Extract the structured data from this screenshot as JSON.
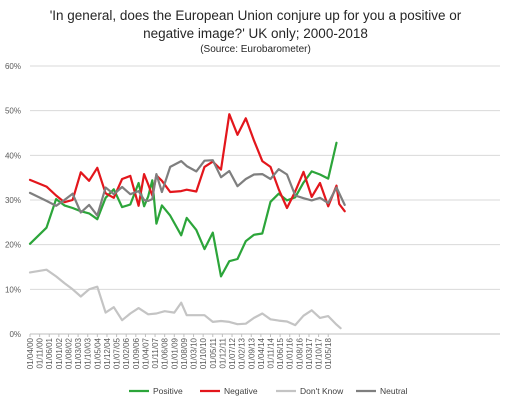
{
  "chart_data": {
    "type": "line",
    "title_line1": "'In general, does the European Union conjure up for you a positive or",
    "title_line2": "negative image?' UK only; 2000-2018",
    "subtitle": "(Source: Eurobarometer)",
    "ylim": [
      0,
      60
    ],
    "y_ticks": [
      "0%",
      "10%",
      "20%",
      "30%",
      "40%",
      "50%",
      "60%"
    ],
    "grid": true,
    "legend_position": "bottom",
    "x": [
      "01/04/00",
      "01/11/00",
      "01/06/01",
      "01/01/02",
      "01/08/02",
      "01/03/03",
      "01/10/03",
      "01/05/04",
      "01/12/04",
      "01/07/05",
      "01/02/06",
      "01/09/06",
      "01/04/07",
      "01/11/07",
      "01/06/08",
      "01/01/09",
      "01/08/09",
      "01/03/10",
      "01/10/10",
      "01/05/11",
      "01/12/11",
      "01/07/12",
      "01/02/13",
      "01/09/13",
      "01/04/14",
      "01/11/14",
      "01/06/15",
      "01/01/16",
      "01/08/16",
      "01/03/17",
      "01/10/17",
      "01/05/18"
    ],
    "series": [
      {
        "name": "Positive",
        "color": "#2ca53a",
        "points": [
          [
            "2000-04",
            20.2
          ],
          [
            "2001-04",
            23.8
          ],
          [
            "2001-11",
            30.2
          ],
          [
            "2002-05",
            28.8
          ],
          [
            "2002-11",
            28.2
          ],
          [
            "2003-05",
            27.5
          ],
          [
            "2003-11",
            27.0
          ],
          [
            "2004-05",
            25.7
          ],
          [
            "2004-11",
            30.5
          ],
          [
            "2005-05",
            32.4
          ],
          [
            "2005-11",
            28.4
          ],
          [
            "2006-05",
            29.0
          ],
          [
            "2006-11",
            33.8
          ],
          [
            "2007-03",
            28.6
          ],
          [
            "2007-06",
            30.8
          ],
          [
            "2007-09",
            34.4
          ],
          [
            "2007-12",
            24.7
          ],
          [
            "2008-04",
            28.8
          ],
          [
            "2008-10",
            26.5
          ],
          [
            "2009-06",
            22.1
          ],
          [
            "2009-10",
            26.0
          ],
          [
            "2010-05",
            23.3
          ],
          [
            "2010-11",
            19.0
          ],
          [
            "2011-05",
            22.7
          ],
          [
            "2011-11",
            12.9
          ],
          [
            "2012-05",
            16.3
          ],
          [
            "2012-11",
            16.8
          ],
          [
            "2013-05",
            20.8
          ],
          [
            "2013-11",
            22.2
          ],
          [
            "2014-05",
            22.5
          ],
          [
            "2014-11",
            29.6
          ],
          [
            "2015-05",
            31.4
          ],
          [
            "2015-11",
            29.9
          ],
          [
            "2016-05",
            30.6
          ],
          [
            "2016-11",
            33.9
          ],
          [
            "2017-05",
            36.4
          ],
          [
            "2017-11",
            35.7
          ],
          [
            "2018-05",
            34.8
          ],
          [
            "2018-11",
            42.8
          ]
        ]
      },
      {
        "name": "Negative",
        "color": "#e3161c",
        "points": [
          [
            "2000-04",
            34.5
          ],
          [
            "2001-04",
            33.0
          ],
          [
            "2001-11",
            31.0
          ],
          [
            "2002-05",
            29.5
          ],
          [
            "2002-11",
            30.0
          ],
          [
            "2003-05",
            36.2
          ],
          [
            "2003-11",
            34.3
          ],
          [
            "2004-05",
            37.2
          ],
          [
            "2004-11",
            31.5
          ],
          [
            "2005-05",
            30.5
          ],
          [
            "2005-11",
            34.7
          ],
          [
            "2006-05",
            35.4
          ],
          [
            "2006-11",
            28.7
          ],
          [
            "2007-03",
            35.8
          ],
          [
            "2007-06",
            33.5
          ],
          [
            "2007-09",
            31.0
          ],
          [
            "2007-12",
            35.5
          ],
          [
            "2008-04",
            34.3
          ],
          [
            "2008-10",
            31.8
          ],
          [
            "2009-06",
            32.0
          ],
          [
            "2009-10",
            32.3
          ],
          [
            "2010-05",
            31.9
          ],
          [
            "2010-11",
            37.4
          ],
          [
            "2011-05",
            38.6
          ],
          [
            "2011-11",
            36.8
          ],
          [
            "2012-05",
            49.2
          ],
          [
            "2012-11",
            44.6
          ],
          [
            "2013-05",
            48.3
          ],
          [
            "2013-11",
            43.3
          ],
          [
            "2014-05",
            38.7
          ],
          [
            "2014-11",
            37.4
          ],
          [
            "2015-05",
            32.4
          ],
          [
            "2015-11",
            28.2
          ],
          [
            "2016-05",
            31.9
          ],
          [
            "2016-11",
            36.3
          ],
          [
            "2017-05",
            30.7
          ],
          [
            "2017-11",
            33.8
          ],
          [
            "2018-05",
            28.6
          ],
          [
            "2018-11",
            33.2
          ],
          [
            "2019-01",
            29.1
          ],
          [
            "2019-05",
            27.5
          ]
        ]
      },
      {
        "name": "Don't Know",
        "color": "#c4c4c4",
        "points": [
          [
            "2000-04",
            13.8
          ],
          [
            "2001-04",
            14.4
          ],
          [
            "2001-11",
            12.9
          ],
          [
            "2002-05",
            11.4
          ],
          [
            "2002-11",
            10.0
          ],
          [
            "2003-05",
            8.4
          ],
          [
            "2003-11",
            10.0
          ],
          [
            "2004-05",
            10.6
          ],
          [
            "2004-11",
            4.8
          ],
          [
            "2005-05",
            6.0
          ],
          [
            "2005-11",
            3.1
          ],
          [
            "2006-05",
            4.6
          ],
          [
            "2006-11",
            5.8
          ],
          [
            "2007-06",
            4.4
          ],
          [
            "2007-12",
            4.6
          ],
          [
            "2008-06",
            5.1
          ],
          [
            "2009-01",
            4.8
          ],
          [
            "2009-06",
            7.0
          ],
          [
            "2009-10",
            4.2
          ],
          [
            "2010-05",
            4.2
          ],
          [
            "2010-11",
            4.2
          ],
          [
            "2011-05",
            2.7
          ],
          [
            "2011-11",
            2.9
          ],
          [
            "2012-05",
            2.7
          ],
          [
            "2012-11",
            2.2
          ],
          [
            "2013-05",
            2.3
          ],
          [
            "2013-11",
            3.6
          ],
          [
            "2014-05",
            4.6
          ],
          [
            "2014-11",
            3.3
          ],
          [
            "2015-05",
            3.0
          ],
          [
            "2015-11",
            2.8
          ],
          [
            "2016-05",
            2.0
          ],
          [
            "2016-11",
            4.1
          ],
          [
            "2017-05",
            5.3
          ],
          [
            "2017-11",
            3.6
          ],
          [
            "2018-05",
            4.0
          ],
          [
            "2018-11",
            2.1
          ],
          [
            "2019-02",
            1.3
          ]
        ]
      },
      {
        "name": "Neutral",
        "color": "#7f7f7f",
        "points": [
          [
            "2000-04",
            31.6
          ],
          [
            "2001-04",
            29.8
          ],
          [
            "2001-11",
            28.7
          ],
          [
            "2002-05",
            30.0
          ],
          [
            "2002-11",
            31.4
          ],
          [
            "2003-05",
            27.2
          ],
          [
            "2003-11",
            28.9
          ],
          [
            "2004-05",
            26.5
          ],
          [
            "2004-11",
            32.8
          ],
          [
            "2005-05",
            31.3
          ],
          [
            "2005-11",
            32.9
          ],
          [
            "2006-05",
            31.3
          ],
          [
            "2006-11",
            32.0
          ],
          [
            "2007-03",
            30.0
          ],
          [
            "2007-06",
            29.8
          ],
          [
            "2007-09",
            30.2
          ],
          [
            "2007-12",
            35.8
          ],
          [
            "2008-04",
            31.8
          ],
          [
            "2008-10",
            37.4
          ],
          [
            "2009-06",
            38.7
          ],
          [
            "2009-10",
            37.6
          ],
          [
            "2010-05",
            36.4
          ],
          [
            "2010-11",
            38.8
          ],
          [
            "2011-05",
            38.9
          ],
          [
            "2011-11",
            35.1
          ],
          [
            "2012-05",
            36.5
          ],
          [
            "2012-11",
            33.1
          ],
          [
            "2013-05",
            34.7
          ],
          [
            "2013-11",
            35.7
          ],
          [
            "2014-05",
            35.8
          ],
          [
            "2014-11",
            34.7
          ],
          [
            "2015-05",
            36.9
          ],
          [
            "2015-11",
            35.7
          ],
          [
            "2016-05",
            31.0
          ],
          [
            "2016-11",
            30.4
          ],
          [
            "2017-05",
            29.9
          ],
          [
            "2017-11",
            30.5
          ],
          [
            "2018-05",
            29.3
          ],
          [
            "2018-11",
            32.8
          ],
          [
            "2019-05",
            28.9
          ]
        ]
      }
    ]
  }
}
